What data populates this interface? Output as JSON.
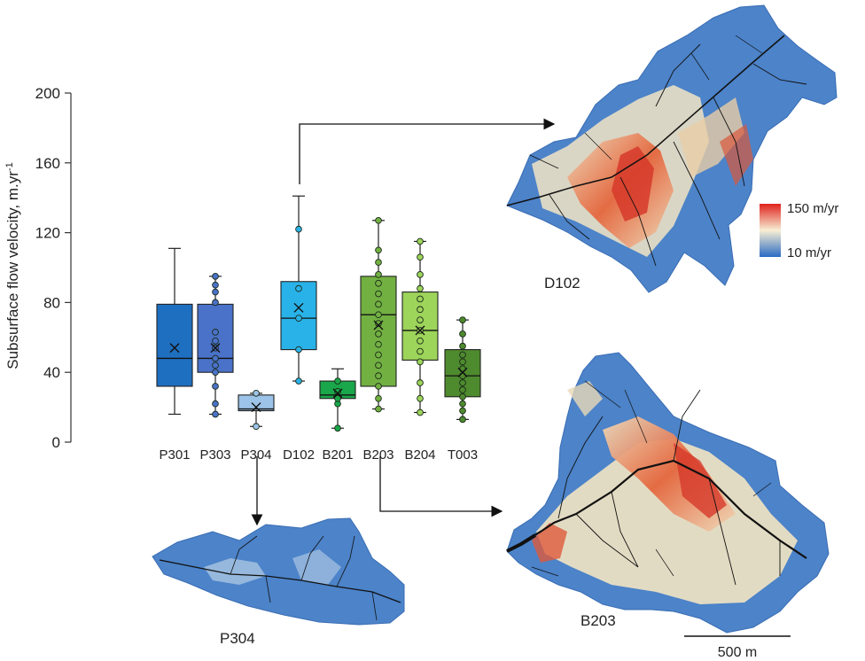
{
  "chart_data": {
    "type": "boxplot",
    "ylabel": "Subsurface flow velocity, m.yr",
    "ylabel_superscript": "-1",
    "ylim": [
      0,
      200
    ],
    "yticks": [
      0,
      40,
      80,
      120,
      160,
      200
    ],
    "categories": [
      "P301",
      "P303",
      "P304",
      "D102",
      "B201",
      "B203",
      "B204",
      "T003"
    ],
    "colors": [
      "#1f6fc0",
      "#4a72c8",
      "#9cc3e8",
      "#29b2e8",
      "#1aa64a",
      "#72b042",
      "#9dd45a",
      "#4e8a2e"
    ],
    "boxes": [
      {
        "label": "P301",
        "min": 16,
        "q1": 32,
        "median": 48,
        "q3": 79,
        "max": 111,
        "mean": 54,
        "points": []
      },
      {
        "label": "P303",
        "min": 16,
        "q1": 40,
        "median": 48,
        "q3": 79,
        "max": 95,
        "mean": 54,
        "points": [
          16,
          22,
          32,
          40,
          44,
          48,
          54,
          58,
          63,
          80,
          86,
          90,
          95
        ]
      },
      {
        "label": "P304",
        "min": 9,
        "q1": 18,
        "median": 19,
        "q3": 27,
        "max": 28,
        "mean": 20,
        "points": [
          9,
          28
        ]
      },
      {
        "label": "D102",
        "min": 35,
        "q1": 53,
        "median": 71,
        "q3": 92,
        "max": 141,
        "mean": 77,
        "points": [
          35,
          53,
          71,
          88,
          122
        ]
      },
      {
        "label": "B201",
        "min": 8,
        "q1": 25,
        "median": 27,
        "q3": 35,
        "max": 42,
        "mean": 28,
        "points": [
          8,
          22,
          25,
          29,
          35
        ]
      },
      {
        "label": "B203",
        "min": 19,
        "q1": 32,
        "median": 73,
        "q3": 95,
        "max": 127,
        "mean": 67,
        "points": [
          19,
          25,
          32,
          38,
          44,
          50,
          56,
          62,
          68,
          73,
          79,
          85,
          91,
          96,
          103,
          110,
          127
        ]
      },
      {
        "label": "B204",
        "min": 17,
        "q1": 47,
        "median": 64,
        "q3": 86,
        "max": 115,
        "mean": 64,
        "points": [
          17,
          25,
          34,
          46,
          52,
          58,
          64,
          70,
          76,
          82,
          88,
          96,
          106,
          115
        ]
      },
      {
        "label": "T003",
        "min": 13,
        "q1": 26,
        "median": 38,
        "q3": 53,
        "max": 70,
        "mean": 40,
        "points": [
          13,
          18,
          22,
          26,
          30,
          34,
          38,
          42,
          46,
          50,
          55,
          62,
          70
        ]
      }
    ],
    "legend": {
      "high": "150 m/yr",
      "low": "10 m/yr"
    },
    "maps": [
      {
        "label": "D102"
      },
      {
        "label": "B203"
      },
      {
        "label": "P304"
      }
    ],
    "scale_bar": "500 m"
  }
}
